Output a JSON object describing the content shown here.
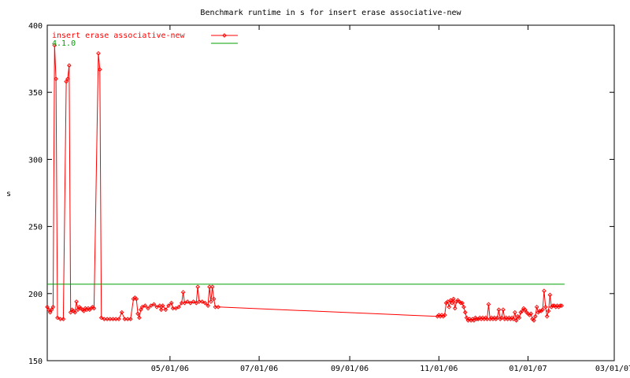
{
  "chart_data": {
    "type": "line",
    "title": "Benchmark runtime in s for insert erase associative-new",
    "xlabel": "",
    "ylabel": "s",
    "xlim": [
      "2006-02-06",
      "2007-03-01"
    ],
    "ylim": [
      150,
      400
    ],
    "x_ticks": [
      {
        "date": "2006-05-01",
        "label": "05/01/06"
      },
      {
        "date": "2006-07-01",
        "label": "07/01/06"
      },
      {
        "date": "2006-09-01",
        "label": "09/01/06"
      },
      {
        "date": "2006-11-01",
        "label": "11/01/06"
      },
      {
        "date": "2007-01-01",
        "label": "01/01/07"
      },
      {
        "date": "2007-03-01",
        "label": "03/01/07"
      }
    ],
    "y_ticks": [
      150,
      200,
      250,
      300,
      350,
      400
    ],
    "grid": false,
    "legend_position": "top-left",
    "series": [
      {
        "name": "insert erase associative-new",
        "color": "#ff0000",
        "marker": "diamond",
        "points": [
          [
            "2006-02-06",
            190
          ],
          [
            "2006-02-07",
            188
          ],
          [
            "2006-02-08",
            186
          ],
          [
            "2006-02-09",
            188
          ],
          [
            "2006-02-10",
            190
          ],
          [
            "2006-02-11",
            385
          ],
          [
            "2006-02-12",
            360
          ],
          [
            "2006-02-13",
            182
          ],
          [
            "2006-02-15",
            181
          ],
          [
            "2006-02-17",
            181
          ],
          [
            "2006-02-19",
            358
          ],
          [
            "2006-02-20",
            360
          ],
          [
            "2006-02-21",
            370
          ],
          [
            "2006-02-22",
            186
          ],
          [
            "2006-02-23",
            188
          ],
          [
            "2006-02-24",
            187
          ],
          [
            "2006-02-25",
            186
          ],
          [
            "2006-02-26",
            194
          ],
          [
            "2006-02-27",
            188
          ],
          [
            "2006-02-28",
            190
          ],
          [
            "2006-03-01",
            189
          ],
          [
            "2006-03-02",
            188
          ],
          [
            "2006-03-03",
            187
          ],
          [
            "2006-03-04",
            189
          ],
          [
            "2006-03-05",
            188
          ],
          [
            "2006-03-06",
            189
          ],
          [
            "2006-03-07",
            188
          ],
          [
            "2006-03-08",
            189
          ],
          [
            "2006-03-09",
            190
          ],
          [
            "2006-03-10",
            189
          ],
          [
            "2006-03-13",
            379
          ],
          [
            "2006-03-14",
            367
          ],
          [
            "2006-03-15",
            182
          ],
          [
            "2006-03-17",
            181
          ],
          [
            "2006-03-19",
            181
          ],
          [
            "2006-03-21",
            181
          ],
          [
            "2006-03-23",
            181
          ],
          [
            "2006-03-25",
            181
          ],
          [
            "2006-03-27",
            181
          ],
          [
            "2006-03-29",
            186
          ],
          [
            "2006-03-31",
            181
          ],
          [
            "2006-04-02",
            181
          ],
          [
            "2006-04-04",
            181
          ],
          [
            "2006-04-06",
            196
          ],
          [
            "2006-04-07",
            197
          ],
          [
            "2006-04-08",
            196
          ],
          [
            "2006-04-09",
            185
          ],
          [
            "2006-04-10",
            182
          ],
          [
            "2006-04-11",
            188
          ],
          [
            "2006-04-12",
            190
          ],
          [
            "2006-04-14",
            191
          ],
          [
            "2006-04-16",
            189
          ],
          [
            "2006-04-18",
            191
          ],
          [
            "2006-04-20",
            192
          ],
          [
            "2006-04-22",
            190
          ],
          [
            "2006-04-24",
            191
          ],
          [
            "2006-04-25",
            188
          ],
          [
            "2006-04-26",
            191
          ],
          [
            "2006-04-28",
            188
          ],
          [
            "2006-04-30",
            191
          ],
          [
            "2006-05-02",
            193
          ],
          [
            "2006-05-03",
            189
          ],
          [
            "2006-05-05",
            189
          ],
          [
            "2006-05-07",
            190
          ],
          [
            "2006-05-09",
            193
          ],
          [
            "2006-05-10",
            201
          ],
          [
            "2006-05-11",
            193
          ],
          [
            "2006-05-13",
            194
          ],
          [
            "2006-05-15",
            193
          ],
          [
            "2006-05-17",
            194
          ],
          [
            "2006-05-19",
            193
          ],
          [
            "2006-05-20",
            205
          ],
          [
            "2006-05-21",
            194
          ],
          [
            "2006-05-23",
            194
          ],
          [
            "2006-05-25",
            193
          ],
          [
            "2006-05-27",
            191
          ],
          [
            "2006-05-28",
            205
          ],
          [
            "2006-05-29",
            194
          ],
          [
            "2006-05-30",
            205
          ],
          [
            "2006-05-31",
            196
          ],
          [
            "2006-06-01",
            190
          ],
          [
            "2006-06-03",
            190
          ],
          [
            "2006-10-31",
            183
          ],
          [
            "2006-11-01",
            184
          ],
          [
            "2006-11-02",
            183
          ],
          [
            "2006-11-03",
            184
          ],
          [
            "2006-11-04",
            183
          ],
          [
            "2006-11-05",
            184
          ],
          [
            "2006-11-06",
            193
          ],
          [
            "2006-11-07",
            194
          ],
          [
            "2006-11-08",
            190
          ],
          [
            "2006-11-09",
            195
          ],
          [
            "2006-11-10",
            193
          ],
          [
            "2006-11-11",
            196
          ],
          [
            "2006-11-12",
            189
          ],
          [
            "2006-11-13",
            194
          ],
          [
            "2006-11-14",
            195
          ],
          [
            "2006-11-15",
            194
          ],
          [
            "2006-11-16",
            193
          ],
          [
            "2006-11-17",
            193
          ],
          [
            "2006-11-18",
            190
          ],
          [
            "2006-11-19",
            186
          ],
          [
            "2006-11-20",
            182
          ],
          [
            "2006-11-21",
            180
          ],
          [
            "2006-11-22",
            181
          ],
          [
            "2006-11-23",
            180
          ],
          [
            "2006-11-24",
            181
          ],
          [
            "2006-11-25",
            180
          ],
          [
            "2006-11-26",
            182
          ],
          [
            "2006-11-27",
            181
          ],
          [
            "2006-11-28",
            181
          ],
          [
            "2006-11-29",
            182
          ],
          [
            "2006-11-30",
            181
          ],
          [
            "2006-12-01",
            182
          ],
          [
            "2006-12-02",
            181
          ],
          [
            "2006-12-03",
            182
          ],
          [
            "2006-12-04",
            181
          ],
          [
            "2006-12-05",
            192
          ],
          [
            "2006-12-06",
            181
          ],
          [
            "2006-12-07",
            182
          ],
          [
            "2006-12-08",
            181
          ],
          [
            "2006-12-09",
            182
          ],
          [
            "2006-12-10",
            181
          ],
          [
            "2006-12-11",
            182
          ],
          [
            "2006-12-12",
            188
          ],
          [
            "2006-12-13",
            181
          ],
          [
            "2006-12-14",
            182
          ],
          [
            "2006-12-15",
            188
          ],
          [
            "2006-12-16",
            181
          ],
          [
            "2006-12-17",
            182
          ],
          [
            "2006-12-18",
            181
          ],
          [
            "2006-12-19",
            182
          ],
          [
            "2006-12-20",
            181
          ],
          [
            "2006-12-21",
            182
          ],
          [
            "2006-12-22",
            181
          ],
          [
            "2006-12-23",
            186
          ],
          [
            "2006-12-24",
            180
          ],
          [
            "2006-12-25",
            183
          ],
          [
            "2006-12-26",
            182
          ],
          [
            "2006-12-27",
            186
          ],
          [
            "2006-12-28",
            187
          ],
          [
            "2006-12-29",
            189
          ],
          [
            "2006-12-30",
            188
          ],
          [
            "2006-12-31",
            186
          ],
          [
            "2007-01-01",
            185
          ],
          [
            "2007-01-02",
            184
          ],
          [
            "2007-01-03",
            185
          ],
          [
            "2007-01-04",
            181
          ],
          [
            "2007-01-05",
            180
          ],
          [
            "2007-01-06",
            183
          ],
          [
            "2007-01-07",
            190
          ],
          [
            "2007-01-08",
            186
          ],
          [
            "2007-01-09",
            187
          ],
          [
            "2007-01-10",
            187
          ],
          [
            "2007-01-11",
            188
          ],
          [
            "2007-01-12",
            202
          ],
          [
            "2007-01-13",
            190
          ],
          [
            "2007-01-14",
            183
          ],
          [
            "2007-01-15",
            187
          ],
          [
            "2007-01-16",
            199
          ],
          [
            "2007-01-17",
            190
          ],
          [
            "2007-01-18",
            191
          ],
          [
            "2007-01-19",
            191
          ],
          [
            "2007-01-20",
            190
          ],
          [
            "2007-01-21",
            191
          ],
          [
            "2007-01-22",
            190
          ],
          [
            "2007-01-23",
            191
          ],
          [
            "2007-01-24",
            191
          ]
        ]
      },
      {
        "name": "4.1.0",
        "color": "#00a000",
        "marker": "none",
        "points": [
          [
            "2006-02-06",
            207
          ],
          [
            "2007-01-26",
            207
          ]
        ]
      }
    ]
  }
}
